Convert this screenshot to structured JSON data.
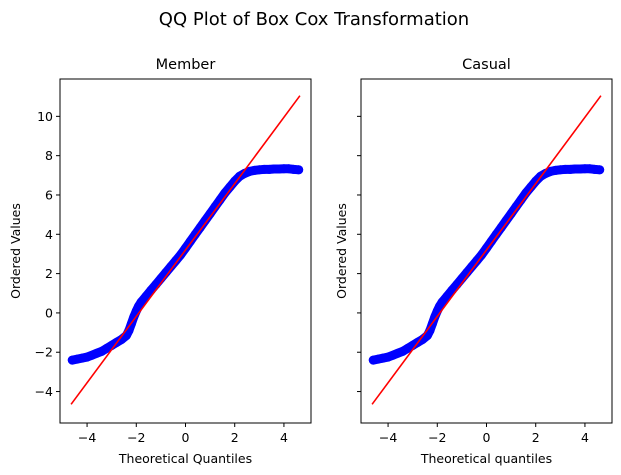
{
  "chart_data": {
    "suptitle": "QQ Plot of Box Cox Transformation",
    "sharey": true,
    "panels": [
      {
        "type": "scatter",
        "title": "Member",
        "xlabel": "Theoretical Quantiles",
        "ylabel": "Ordered Values",
        "xlim": [
          -5.1,
          5.1
        ],
        "ylim": [
          -5.6,
          11.9
        ],
        "xticks": [
          -4,
          -2,
          0,
          2,
          4
        ],
        "yticks": [
          -4,
          -2,
          0,
          2,
          4,
          6,
          8,
          10
        ],
        "show_ytick_labels": true,
        "series": [
          {
            "kind": "points",
            "color": "#0000ff",
            "x": [
              -4.6,
              -4.4,
              -4.2,
              -4.0,
              -3.8,
              -3.6,
              -3.4,
              -3.2,
              -3.0,
              -2.8,
              -2.6,
              -2.4,
              -2.3,
              -2.2,
              -2.1,
              -2.0,
              -1.9,
              -1.8,
              -1.6,
              -1.4,
              -1.2,
              -1.0,
              -0.8,
              -0.6,
              -0.4,
              -0.2,
              0.0,
              0.2,
              0.4,
              0.6,
              0.8,
              1.0,
              1.2,
              1.4,
              1.6,
              1.8,
              2.0,
              2.2,
              2.4,
              2.6,
              2.8,
              3.0,
              3.2,
              3.4,
              3.6,
              3.8,
              4.0,
              4.2,
              4.4,
              4.6
            ],
            "y": [
              -2.4,
              -2.35,
              -2.3,
              -2.25,
              -2.15,
              -2.05,
              -1.95,
              -1.8,
              -1.65,
              -1.5,
              -1.35,
              -1.15,
              -0.9,
              -0.55,
              -0.2,
              0.1,
              0.35,
              0.55,
              0.85,
              1.15,
              1.45,
              1.75,
              2.05,
              2.35,
              2.65,
              2.95,
              3.3,
              3.65,
              4.0,
              4.35,
              4.7,
              5.05,
              5.4,
              5.75,
              6.1,
              6.4,
              6.7,
              6.95,
              7.1,
              7.2,
              7.25,
              7.28,
              7.3,
              7.3,
              7.32,
              7.32,
              7.33,
              7.33,
              7.3,
              7.28
            ]
          },
          {
            "kind": "fit_line",
            "color": "#ff0000",
            "x": [
              -4.65,
              4.65
            ],
            "y": [
              -4.65,
              11.05
            ]
          }
        ]
      },
      {
        "type": "scatter",
        "title": "Casual",
        "xlabel": "Theoretical quantiles",
        "ylabel": "Ordered Values",
        "xlim": [
          -5.1,
          5.1
        ],
        "ylim": [
          -5.6,
          11.9
        ],
        "xticks": [
          -4,
          -2,
          0,
          2,
          4
        ],
        "yticks": [
          -4,
          -2,
          0,
          2,
          4,
          6,
          8,
          10
        ],
        "show_ytick_labels": false,
        "series": [
          {
            "kind": "points",
            "color": "#0000ff",
            "x": [
              -4.6,
              -4.4,
              -4.2,
              -4.0,
              -3.8,
              -3.6,
              -3.4,
              -3.2,
              -3.0,
              -2.8,
              -2.6,
              -2.4,
              -2.3,
              -2.2,
              -2.1,
              -2.0,
              -1.9,
              -1.8,
              -1.6,
              -1.4,
              -1.2,
              -1.0,
              -0.8,
              -0.6,
              -0.4,
              -0.2,
              0.0,
              0.2,
              0.4,
              0.6,
              0.8,
              1.0,
              1.2,
              1.4,
              1.6,
              1.8,
              2.0,
              2.2,
              2.4,
              2.6,
              2.8,
              3.0,
              3.2,
              3.4,
              3.6,
              3.8,
              4.0,
              4.2,
              4.4,
              4.6
            ],
            "y": [
              -2.4,
              -2.35,
              -2.3,
              -2.25,
              -2.15,
              -2.05,
              -1.95,
              -1.8,
              -1.65,
              -1.5,
              -1.35,
              -1.15,
              -0.9,
              -0.55,
              -0.2,
              0.1,
              0.35,
              0.55,
              0.85,
              1.15,
              1.45,
              1.75,
              2.05,
              2.35,
              2.65,
              2.95,
              3.3,
              3.65,
              4.0,
              4.35,
              4.7,
              5.05,
              5.4,
              5.75,
              6.1,
              6.4,
              6.7,
              6.95,
              7.1,
              7.2,
              7.25,
              7.28,
              7.3,
              7.3,
              7.32,
              7.32,
              7.33,
              7.33,
              7.3,
              7.28
            ]
          },
          {
            "kind": "fit_line",
            "color": "#ff0000",
            "x": [
              -4.65,
              4.65
            ],
            "y": [
              -4.65,
              11.05
            ]
          }
        ]
      }
    ]
  }
}
